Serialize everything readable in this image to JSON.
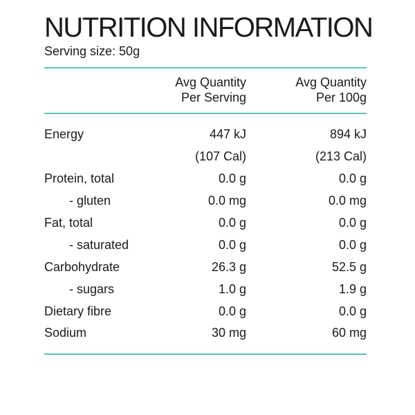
{
  "title": "NUTRITION INFORMATION",
  "serving_size": "Serving size: 50g",
  "colors": {
    "rule": "#5fc1b0",
    "text": "#1a1a1a"
  },
  "columns": {
    "per_serving": [
      "Avg Quantity",
      "Per Serving"
    ],
    "per_100g": [
      "Avg Quantity",
      "Per 100g"
    ]
  },
  "rows": [
    {
      "name": "Energy",
      "serving": "447 kJ",
      "per100": "894 kJ",
      "indent": false
    },
    {
      "name": "",
      "serving": "(107 Cal)",
      "per100": "(213 Cal)",
      "indent": false
    },
    {
      "name": "Protein, total",
      "serving": "0.0 g",
      "per100": "0.0 g",
      "indent": false
    },
    {
      "name": "- gluten",
      "serving": "0.0 mg",
      "per100": "0.0 mg",
      "indent": true
    },
    {
      "name": "Fat, total",
      "serving": "0.0 g",
      "per100": "0.0 g",
      "indent": false
    },
    {
      "name": "- saturated",
      "serving": "0.0 g",
      "per100": "0.0 g",
      "indent": true
    },
    {
      "name": "Carbohydrate",
      "serving": "26.3 g",
      "per100": "52.5 g",
      "indent": false
    },
    {
      "name": "- sugars",
      "serving": "1.0 g",
      "per100": "1.9 g",
      "indent": true
    },
    {
      "name": "Dietary fibre",
      "serving": "0.0 g",
      "per100": "0.0 g",
      "indent": false
    },
    {
      "name": "Sodium",
      "serving": "30 mg",
      "per100": "60 mg",
      "indent": false
    }
  ]
}
